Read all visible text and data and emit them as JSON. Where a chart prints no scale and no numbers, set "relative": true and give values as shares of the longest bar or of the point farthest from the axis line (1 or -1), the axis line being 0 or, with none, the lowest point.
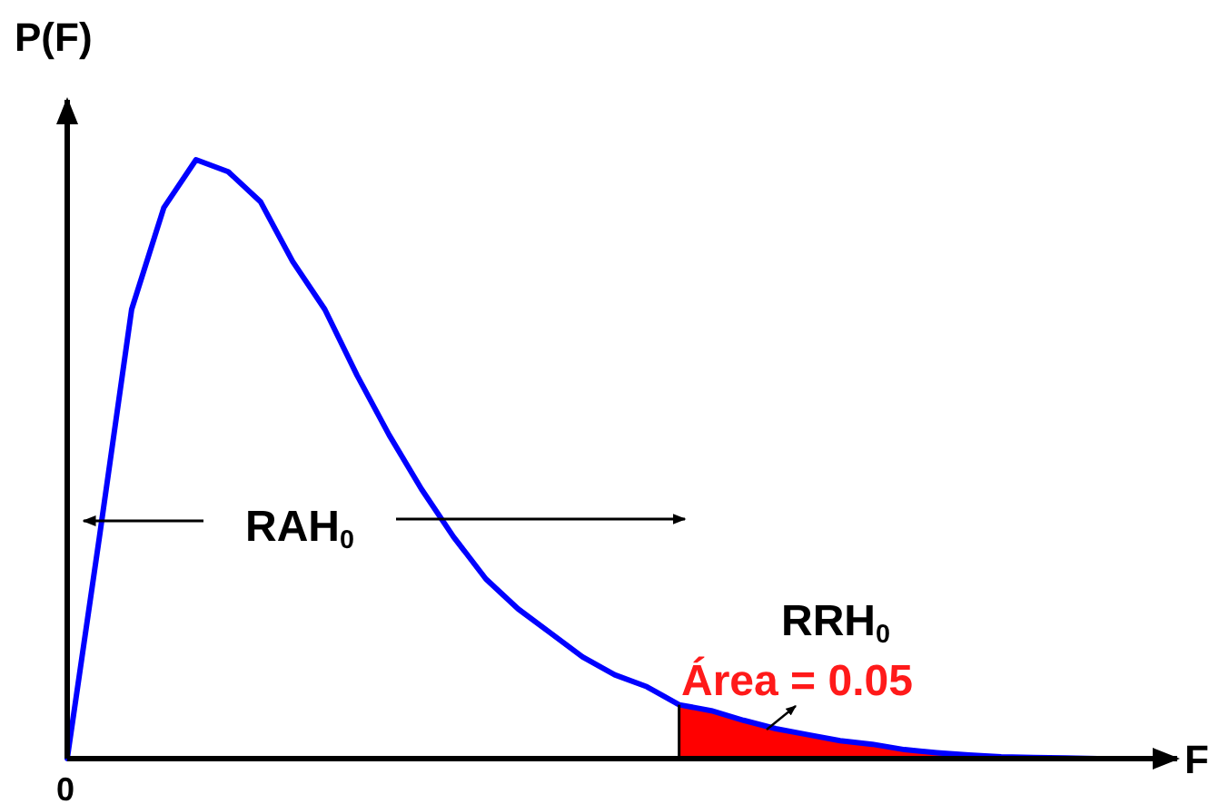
{
  "chart_data": {
    "type": "line",
    "relative": true,
    "xlabel": "F",
    "ylabel": "P(F)",
    "categories": [
      null,
      null,
      null,
      null,
      null,
      null,
      null,
      null,
      null,
      null,
      null,
      null,
      null,
      null,
      null,
      null,
      null,
      null,
      null,
      null,
      null,
      null,
      null,
      null,
      null,
      null,
      null,
      null,
      null,
      null,
      null,
      null,
      null,
      null
    ],
    "series": [
      {
        "type": "area",
        "color": "#ff0000",
        "values": [
          null,
          null,
          null,
          null,
          null,
          null,
          null,
          null,
          null,
          null,
          null,
          null,
          null,
          null,
          null,
          null,
          null,
          null,
          null,
          0.09,
          0.08,
          0.064,
          0.05,
          0.04,
          0.03,
          0.024,
          0.015,
          0.01,
          0.006,
          null,
          null,
          null,
          null,
          null
        ]
      },
      {
        "color": "#0000ff",
        "values": [
          0,
          0.37,
          0.75,
          0.92,
          1,
          0.98,
          0.93,
          0.83,
          0.75,
          0.64,
          0.54,
          0.45,
          0.37,
          0.3,
          0.25,
          0.21,
          0.17,
          0.14,
          0.12,
          0.09,
          0.08,
          0.064,
          0.05,
          0.04,
          0.03,
          0.024,
          0.015,
          0.01,
          0.006,
          0.003,
          0.002,
          0.001,
          0,
          0
        ]
      }
    ],
    "line_style": "solid",
    "marker": "none",
    "grid": false,
    "annotations": [
      "RAH$_{0}$",
      "RRH$_{0}$",
      "Área = 0.05",
      "0"
    ]
  }
}
